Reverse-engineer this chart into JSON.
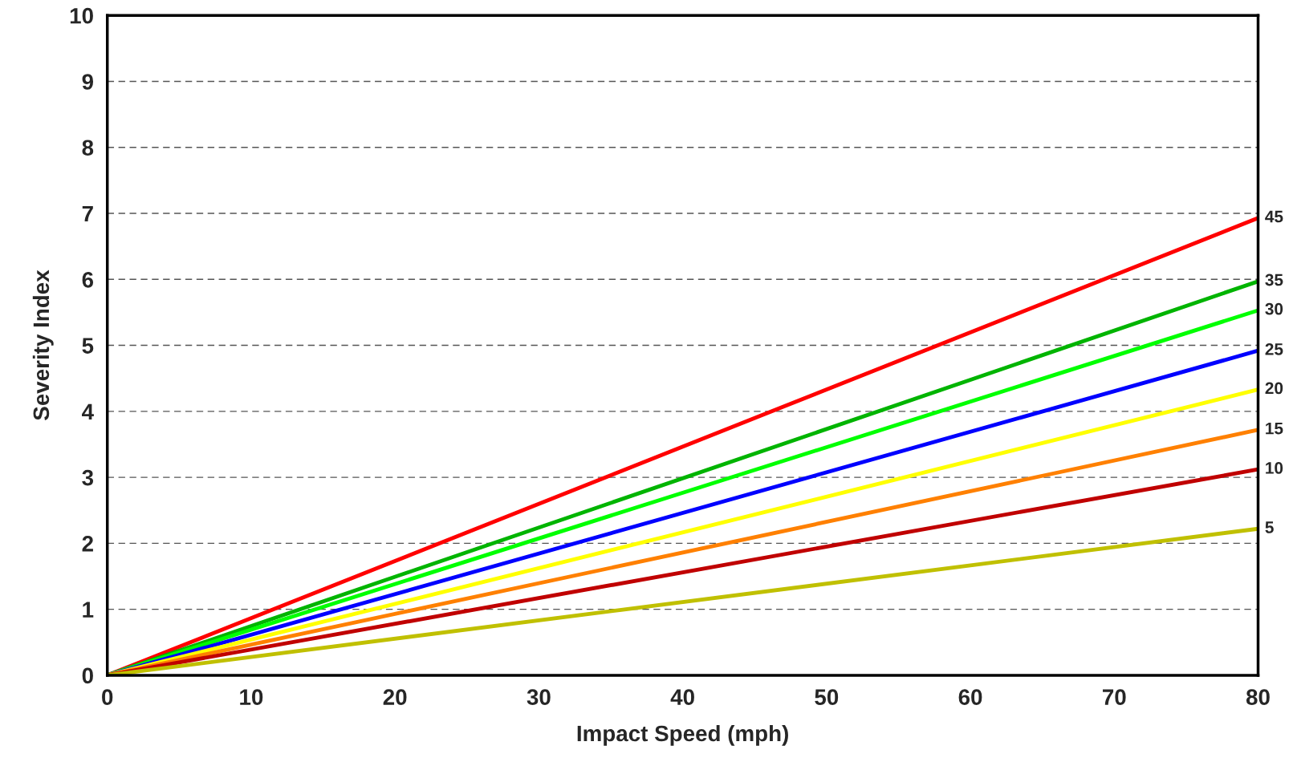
{
  "chart_data": {
    "type": "line",
    "xlabel": "Impact Speed (mph)",
    "ylabel": "Severity Index",
    "xlim": [
      0,
      80
    ],
    "ylim": [
      0,
      10
    ],
    "xticks": [
      0,
      10,
      20,
      30,
      40,
      50,
      60,
      70,
      80
    ],
    "yticks": [
      0,
      1,
      2,
      3,
      4,
      5,
      6,
      7,
      8,
      9,
      10
    ],
    "grid": "y",
    "legend": false,
    "marker": "none",
    "line_style": "solid",
    "x": [
      0,
      80
    ],
    "series": [
      {
        "name": "45",
        "color": "#ff0000",
        "values": [
          0,
          6.93
        ]
      },
      {
        "name": "35",
        "color": "#00b400",
        "values": [
          0,
          5.97
        ]
      },
      {
        "name": "30",
        "color": "#00ff00",
        "values": [
          0,
          5.53
        ]
      },
      {
        "name": "25",
        "color": "#0000ff",
        "values": [
          0,
          4.92
        ]
      },
      {
        "name": "20",
        "color": "#ffff00",
        "values": [
          0,
          4.33
        ]
      },
      {
        "name": "15",
        "color": "#ff8000",
        "values": [
          0,
          3.72
        ]
      },
      {
        "name": "10",
        "color": "#c00000",
        "values": [
          0,
          3.12
        ]
      },
      {
        "name": "5",
        "color": "#c0c000",
        "values": [
          0,
          2.22
        ]
      }
    ]
  }
}
